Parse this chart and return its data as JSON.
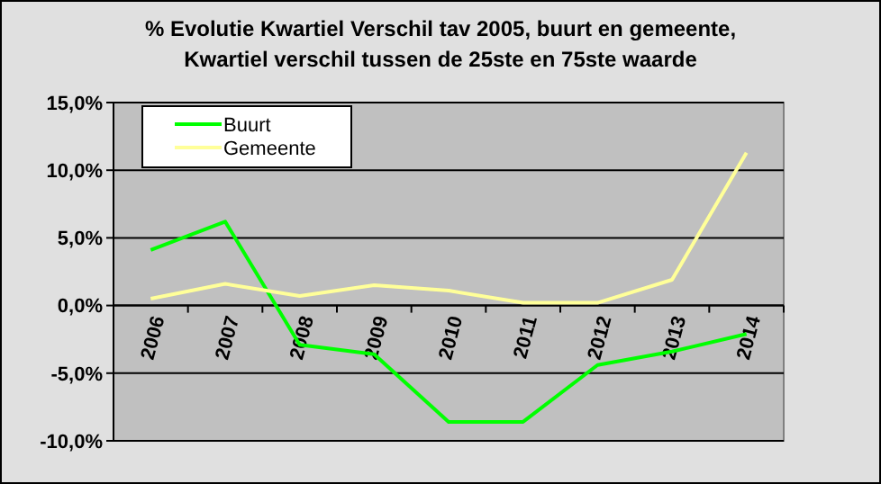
{
  "chart_data": {
    "type": "line",
    "title": "% Evolutie Kwartiel Verschil tav 2005, buurt en gemeente, Kwartiel verschil tussen de 25ste en 75ste waarde",
    "categories": [
      "2006",
      "2007",
      "2008",
      "2009",
      "2010",
      "2011",
      "2012",
      "2013",
      "2014"
    ],
    "series": [
      {
        "name": "Buurt",
        "color": "#00ff00",
        "values": [
          4.1,
          6.2,
          -2.9,
          -3.6,
          -8.6,
          -8.6,
          -4.4,
          -3.4,
          -2.1
        ]
      },
      {
        "name": "Gemeente",
        "color": "#ffff99",
        "values": [
          0.5,
          1.6,
          0.7,
          1.5,
          1.1,
          0.2,
          0.2,
          1.9,
          11.3
        ]
      }
    ],
    "ylim": [
      -10,
      15
    ],
    "yticks": [
      {
        "value": -10,
        "label": "-10,0%"
      },
      {
        "value": -5,
        "label": "-5,0%"
      },
      {
        "value": 0,
        "label": "0,0%"
      },
      {
        "value": 5,
        "label": "5,0%"
      },
      {
        "value": 10,
        "label": "10,0%"
      },
      {
        "value": 15,
        "label": "15,0%"
      }
    ],
    "grid": "y",
    "legend": "top left",
    "marker": "none",
    "line_style": "solid"
  }
}
